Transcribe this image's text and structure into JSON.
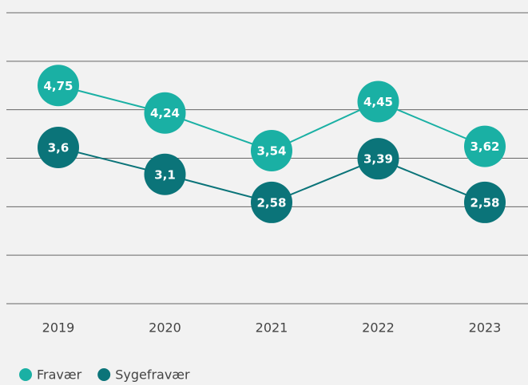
{
  "chart_data": {
    "type": "line",
    "categories": [
      "2019",
      "2020",
      "2021",
      "2022",
      "2023"
    ],
    "series": [
      {
        "name": "Fravær",
        "color": "#1ab0a4",
        "values": [
          4.75,
          4.24,
          3.54,
          4.45,
          3.62
        ],
        "value_labels": [
          "4,75",
          "4,24",
          "3,54",
          "4,45",
          "3,62"
        ]
      },
      {
        "name": "Sygefravær",
        "color": "#0b7479",
        "values": [
          3.6,
          3.1,
          2.58,
          3.39,
          2.58
        ],
        "value_labels": [
          "3,6",
          "3,1",
          "2,58",
          "3,39",
          "2,58"
        ]
      }
    ],
    "ylim": [
      0.7,
      6.1
    ],
    "yticks": [
      0.7,
      1.6,
      2.5,
      3.4,
      4.3,
      5.2,
      6.1
    ],
    "grid": true
  }
}
